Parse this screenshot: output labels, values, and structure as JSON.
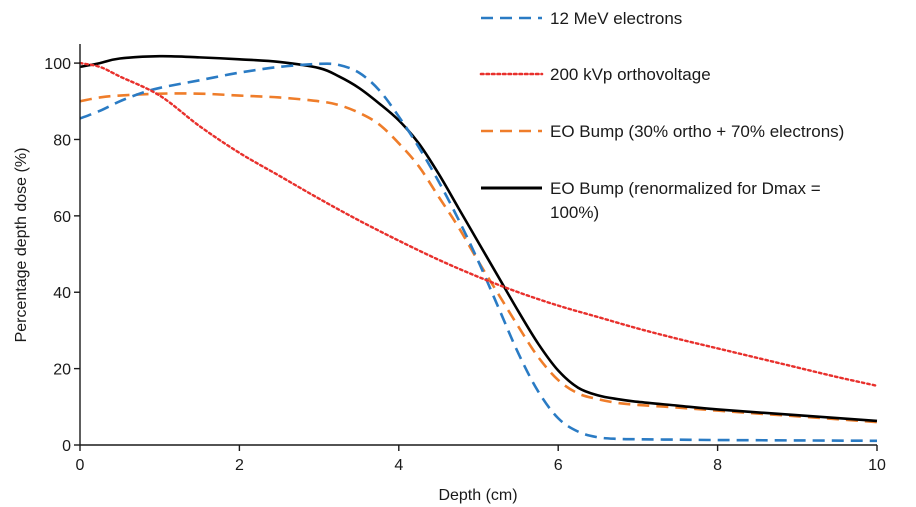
{
  "chart_data": {
    "type": "line",
    "title": "",
    "xlabel": "Depth (cm)",
    "ylabel": "Percentage depth dose (%)",
    "xlim": [
      0,
      10
    ],
    "ylim": [
      0,
      105
    ],
    "xticks": [
      0,
      2,
      4,
      6,
      8,
      10
    ],
    "yticks": [
      0,
      20,
      40,
      60,
      80,
      100
    ],
    "grid": false,
    "legend_position": "top-right",
    "series": [
      {
        "name": "12 MeV electrons",
        "color": "#2a7bc4",
        "dash": "dashed",
        "x": [
          0,
          0.25,
          0.5,
          0.75,
          1,
          1.5,
          2,
          2.5,
          3,
          3.25,
          3.5,
          3.75,
          4,
          4.25,
          4.5,
          4.75,
          5,
          5.25,
          5.5,
          5.75,
          6,
          6.25,
          6.5,
          6.75,
          7,
          7.5,
          8,
          9,
          10
        ],
        "y": [
          85.5,
          87.5,
          90,
          92,
          93.5,
          95.5,
          97.5,
          99,
          99.8,
          99.5,
          97.5,
          93,
          86,
          78,
          69,
          59,
          48,
          36,
          24,
          14,
          7,
          3.5,
          2,
          1.6,
          1.5,
          1.4,
          1.3,
          1.2,
          1.1
        ]
      },
      {
        "name": "200 kVp orthovoltage",
        "color": "#e8302c",
        "dash": "dotted",
        "x": [
          0,
          0.25,
          0.5,
          1,
          1.5,
          2,
          2.5,
          3,
          3.5,
          4,
          4.5,
          5,
          5.5,
          6,
          6.5,
          7,
          7.5,
          8,
          8.5,
          9,
          9.5,
          10
        ],
        "y": [
          100,
          99,
          96.5,
          91.5,
          83.5,
          76.5,
          70.5,
          64.5,
          58.8,
          53.5,
          48.5,
          44,
          40,
          36.5,
          33.5,
          30.5,
          27.8,
          25.3,
          22.8,
          20.3,
          17.8,
          15.5
        ]
      },
      {
        "name": "EO Bump (30% ortho + 70% electrons)",
        "color": "#ef7d2a",
        "dash": "dashed",
        "x": [
          0,
          0.25,
          0.5,
          1,
          1.5,
          2,
          2.5,
          3,
          3.25,
          3.5,
          3.75,
          4,
          4.25,
          4.5,
          4.75,
          5,
          5.25,
          5.5,
          5.75,
          6,
          6.25,
          6.5,
          6.75,
          7,
          7.5,
          8,
          9,
          10
        ],
        "y": [
          90,
          91,
          91.5,
          92,
          92,
          91.5,
          91,
          90,
          89,
          87,
          84,
          79,
          73,
          65,
          57,
          48,
          39.5,
          31,
          23,
          17,
          13.5,
          12,
          11,
          10.5,
          9.8,
          9,
          7.5,
          6
        ]
      },
      {
        "name": "EO Bump (renormalized for Dmax = 100%)",
        "color": "#000000",
        "dash": "solid",
        "x": [
          0,
          0.25,
          0.5,
          1,
          1.5,
          2,
          2.5,
          3,
          3.25,
          3.5,
          3.75,
          4,
          4.25,
          4.5,
          4.75,
          5,
          5.25,
          5.5,
          5.75,
          6,
          6.25,
          6.5,
          6.75,
          7,
          7.5,
          8,
          9,
          10
        ],
        "y": [
          99,
          100,
          101.2,
          101.8,
          101.5,
          101,
          100.3,
          98.7,
          96.5,
          93.5,
          89.5,
          85,
          79,
          71,
          62,
          53,
          44,
          35,
          26.5,
          19.5,
          15,
          13,
          12,
          11.3,
          10.3,
          9.3,
          7.8,
          6.3
        ]
      }
    ],
    "legend": [
      {
        "text": "12 MeV electrons"
      },
      {
        "text": "200 kVp orthovoltage"
      },
      {
        "text": "EO Bump (30% ortho + 70% electrons)"
      },
      {
        "text_lines": [
          "EO Bump (renormalized for Dmax =",
          "100%)"
        ]
      }
    ]
  }
}
